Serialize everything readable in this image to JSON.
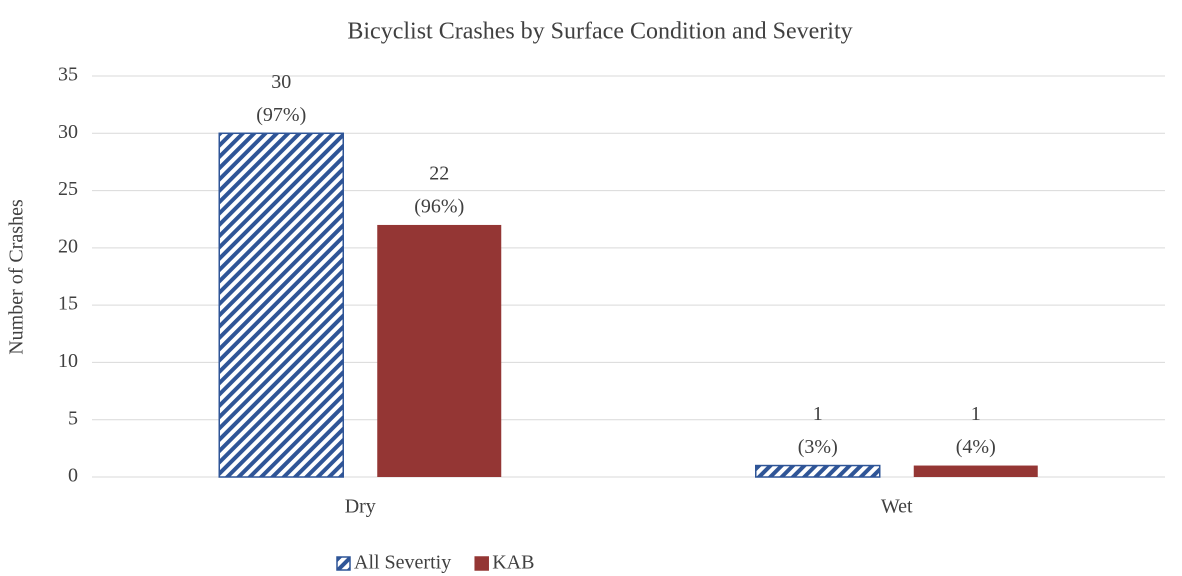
{
  "chart_data": {
    "type": "bar",
    "title": "Bicyclist Crashes by Surface Condition and Severity",
    "y_label": "Number of Crashes",
    "categories": [
      "Dry",
      "Wet"
    ],
    "series": [
      {
        "name": "All Severtiy",
        "color": "#2f5597",
        "pattern": "hatch",
        "values": [
          30,
          1
        ],
        "percent_labels": [
          "(97%)",
          "(3%)"
        ]
      },
      {
        "name": "KAB",
        "color": "#943634",
        "pattern": "solid",
        "values": [
          22,
          1
        ],
        "percent_labels": [
          "(96%)",
          "(4%)"
        ]
      }
    ],
    "ylim": [
      0,
      35
    ],
    "yticks": [
      0,
      5,
      10,
      15,
      20,
      25,
      30,
      35
    ],
    "grid": true,
    "legend": "bottom"
  }
}
